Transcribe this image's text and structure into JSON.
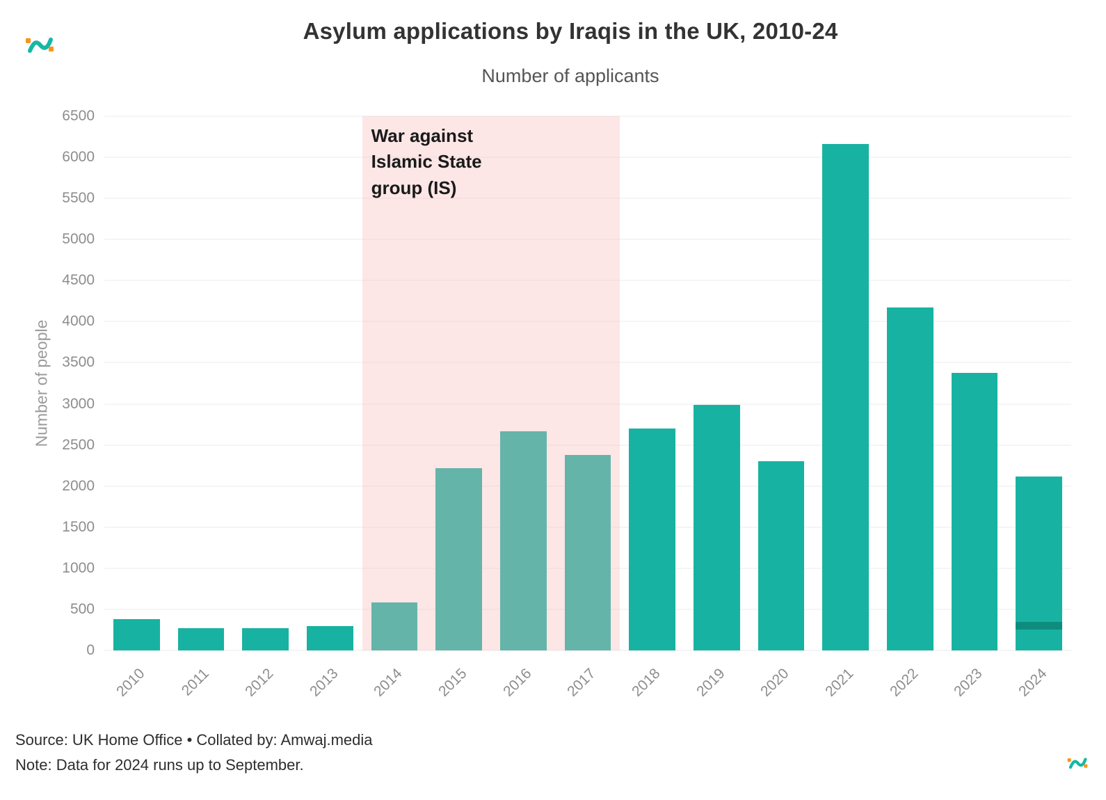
{
  "header": {
    "title": "Asylum applications by Iraqis in the UK, 2010-24",
    "subtitle": "Number of applicants"
  },
  "chart_data": {
    "type": "bar",
    "categories": [
      "2010",
      "2011",
      "2012",
      "2013",
      "2014",
      "2015",
      "2016",
      "2017",
      "2018",
      "2019",
      "2020",
      "2021",
      "2022",
      "2023",
      "2024"
    ],
    "values": [
      380,
      270,
      270,
      300,
      585,
      2220,
      2665,
      2380,
      2700,
      2985,
      2300,
      6165,
      4175,
      3375,
      2115
    ],
    "title": "Asylum applications by Iraqis in the UK, 2010-24",
    "xlabel": "",
    "ylabel": "Number of people",
    "ylim": [
      0,
      6500
    ],
    "yticks": [
      0,
      500,
      1000,
      1500,
      2000,
      2500,
      3000,
      3500,
      4000,
      4500,
      5000,
      5500,
      6000,
      6500
    ],
    "grid": "horizontal",
    "legend": "none",
    "bar_color": "#18b2a2",
    "band": {
      "start_category": "2014",
      "end_category": "2017",
      "label": "War against\nIslamic State\ngroup (IS)",
      "color": "rgba(247,182,182,0.35)"
    },
    "partial_marker": {
      "category": "2024",
      "value": 300
    }
  },
  "footer": {
    "source": "Source: UK Home Office • Collated by: Amwaj.media",
    "note": "Note: Data for 2024 runs up to September."
  },
  "colors": {
    "teal": "#18b2a2",
    "orange": "#f7941d",
    "band_pink": "rgba(247,182,182,0.35)"
  }
}
